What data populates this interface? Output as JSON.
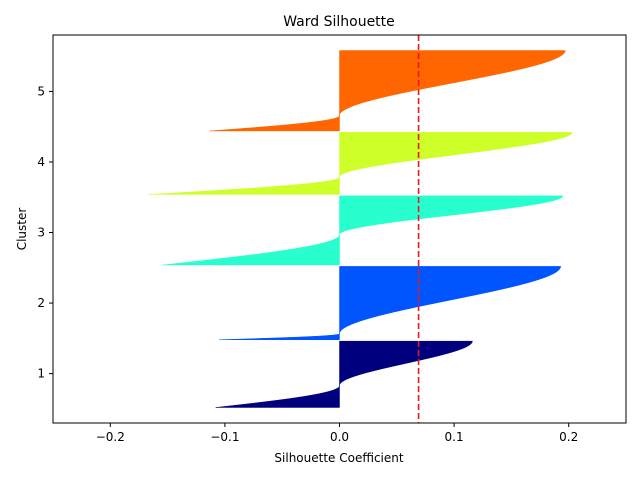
{
  "chart_data": {
    "type": "area",
    "title": "Ward Silhouette",
    "xlabel": "Silhouette Coefficient",
    "ylabel": "Cluster",
    "xlim": [
      -0.25,
      0.25
    ],
    "ylim": [
      0.3,
      5.8
    ],
    "x_ticks": [
      "−0.2",
      "−0.1",
      "0.0",
      "0.1",
      "0.2"
    ],
    "x_tick_values": [
      -0.2,
      -0.1,
      0.0,
      0.1,
      0.2
    ],
    "y_ticks": [
      "1",
      "2",
      "3",
      "4",
      "5"
    ],
    "y_tick_values": [
      1,
      2,
      3,
      4,
      5
    ],
    "grid": false,
    "reference_line": {
      "x": 0.069,
      "style": "dashed",
      "color": "#e41a1c"
    },
    "series": [
      {
        "cluster": 1,
        "color": "#00007f",
        "y_range": [
          0.52,
          1.46
        ],
        "min": -0.108,
        "max": 0.116,
        "neg_frac": 0.33
      },
      {
        "cluster": 2,
        "color": "#0055ff",
        "y_range": [
          1.48,
          2.52
        ],
        "min": -0.105,
        "max": 0.193,
        "neg_frac": 0.08
      },
      {
        "cluster": 3,
        "color": "#29ffce",
        "y_range": [
          2.54,
          3.52
        ],
        "min": -0.154,
        "max": 0.195,
        "neg_frac": 0.44
      },
      {
        "cluster": 4,
        "color": "#ceff29",
        "y_range": [
          3.54,
          4.42
        ],
        "min": -0.166,
        "max": 0.203,
        "neg_frac": 0.28
      },
      {
        "cluster": 5,
        "color": "#ff6600",
        "y_range": [
          4.44,
          5.58
        ],
        "min": -0.113,
        "max": 0.197,
        "neg_frac": 0.19
      }
    ]
  }
}
